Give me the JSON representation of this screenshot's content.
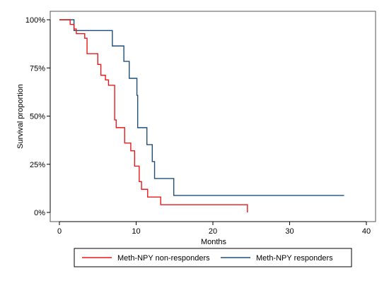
{
  "chart_data": {
    "type": "line",
    "step": true,
    "xlabel": "Months",
    "ylabel": "Survival proportion",
    "xlim": [
      0,
      40
    ],
    "ylim": [
      0,
      1
    ],
    "x_ticks": [
      0,
      10,
      20,
      30,
      40
    ],
    "y_ticks": [
      {
        "value": 0,
        "label": "0%"
      },
      {
        "value": 0.25,
        "label": "25%"
      },
      {
        "value": 0.5,
        "label": "50%"
      },
      {
        "value": 0.75,
        "label": "75%"
      },
      {
        "value": 1,
        "label": "100%"
      }
    ],
    "grid": false,
    "legend_position": "bottom",
    "series": [
      {
        "name": "Meth-NPY non-responders",
        "color": "#e8191b",
        "points": [
          [
            0,
            1.0
          ],
          [
            1.4,
            0.976
          ],
          [
            1.9,
            0.952
          ],
          [
            2.2,
            0.928
          ],
          [
            3.3,
            0.904
          ],
          [
            3.6,
            0.824
          ],
          [
            5.0,
            0.768
          ],
          [
            5.4,
            0.712
          ],
          [
            6.0,
            0.688
          ],
          [
            6.4,
            0.66
          ],
          [
            7.2,
            0.48
          ],
          [
            7.4,
            0.44
          ],
          [
            8.5,
            0.36
          ],
          [
            9.3,
            0.32
          ],
          [
            9.8,
            0.24
          ],
          [
            10.4,
            0.16
          ],
          [
            10.7,
            0.12
          ],
          [
            11.5,
            0.08
          ],
          [
            13.2,
            0.04
          ],
          [
            24.5,
            0.04
          ],
          [
            24.5,
            0.0
          ]
        ]
      },
      {
        "name": "Meth-NPY responders",
        "color": "#1f4e79",
        "points": [
          [
            0,
            1.0
          ],
          [
            1.9,
            0.944
          ],
          [
            6.9,
            0.864
          ],
          [
            8.4,
            0.784
          ],
          [
            9.1,
            0.696
          ],
          [
            10.1,
            0.608
          ],
          [
            10.2,
            0.44
          ],
          [
            11.4,
            0.352
          ],
          [
            12.1,
            0.264
          ],
          [
            12.4,
            0.176
          ],
          [
            14.9,
            0.088
          ],
          [
            37.1,
            0.088
          ]
        ]
      }
    ]
  }
}
